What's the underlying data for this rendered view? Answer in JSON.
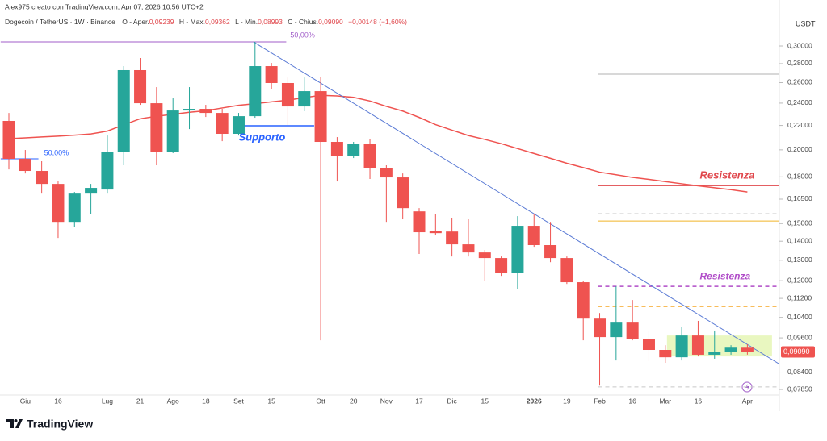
{
  "header": {
    "credit": "Alex975 creato con TradingView.com, Apr 07, 2026 10:56 UTC+2",
    "symbol": "Dogecoin / TetherUS · 1W · Binance",
    "open_label": "O - Aper.",
    "open_value": "0,09239",
    "high_label": "H - Max.",
    "high_value": "0,09362",
    "low_label": "L - Min.",
    "low_value": "0,08993",
    "close_label": "C - Chius.",
    "close_value": "0,09090",
    "change": "−0,00148 (−1,60%)"
  },
  "brand": "TradingView",
  "chart_data": {
    "type": "candlestick",
    "y_axis_label": "USDT",
    "log_scale": true,
    "grid": false,
    "up_color": "#26a69a",
    "down_color": "#ef5350",
    "categories": [
      null,
      "Giu",
      null,
      "16",
      null,
      null,
      "Lug",
      null,
      "21",
      null,
      "Ago",
      null,
      "18",
      null,
      "Set",
      null,
      "15",
      null,
      null,
      "Ott",
      null,
      "20",
      null,
      "Nov",
      null,
      "17",
      null,
      "Dic",
      null,
      "15",
      null,
      null,
      "2026",
      null,
      "19",
      null,
      "Feb",
      null,
      "16",
      null,
      "Mar",
      null,
      "16",
      null,
      null,
      "Apr"
    ],
    "open": [
      0.2239,
      0.1931,
      0.1842,
      0.1751,
      0.151,
      0.1686,
      0.1713,
      0.1986,
      0.273,
      0.2399,
      0.1986,
      0.2332,
      0.2347,
      0.231,
      0.2129,
      0.2281,
      0.2773,
      0.2596,
      0.2369,
      0.2515,
      0.2063,
      0.1955,
      0.205,
      0.1865,
      0.1796,
      0.1573,
      0.1459,
      0.1454,
      0.1383,
      0.134,
      0.1311,
      0.1239,
      0.1487,
      0.1379,
      0.1311,
      0.1193,
      0.1035,
      0.0963,
      0.1019,
      0.0957,
      0.0916,
      0.089,
      0.0969,
      0.0899,
      0.0909,
      0.09239
    ],
    "high": [
      0.231,
      0.1999,
      0.1913,
      0.1768,
      0.1697,
      0.1751,
      0.2115,
      0.2773,
      0.2862,
      0.2555,
      0.2445,
      0.2555,
      0.2384,
      0.2347,
      0.231,
      0.3048,
      0.2808,
      0.2653,
      0.2653,
      0.2662,
      0.2102,
      0.2063,
      0.2089,
      0.1883,
      0.1824,
      0.1593,
      0.1559,
      0.1534,
      0.1525,
      0.1353,
      0.1319,
      0.1544,
      0.1559,
      0.151,
      0.1319,
      0.12,
      0.1058,
      0.1174,
      0.1113,
      0.0988,
      0.0933,
      0.1003,
      0.1026,
      0.0988,
      0.0933,
      0.09362
    ],
    "low": [
      0.1853,
      0.1824,
      0.1686,
      0.1418,
      0.1478,
      0.1559,
      0.1686,
      0.1883,
      0.2384,
      0.1883,
      0.1974,
      0.2169,
      0.2274,
      0.2069,
      0.2115,
      0.2267,
      0.2539,
      0.2204,
      0.2325,
      0.0951,
      0.1768,
      0.1937,
      0.1785,
      0.151,
      0.1525,
      0.1332,
      0.1432,
      0.1319,
      0.1319,
      0.12,
      0.1223,
      0.1163,
      0.137,
      0.129,
      0.1185,
      0.0951,
      0.0797,
      0.0879,
      0.0951,
      0.0876,
      0.0871,
      0.0879,
      0.0893,
      0.0885,
      0.0899,
      0.08993
    ],
    "close": [
      0.1931,
      0.1842,
      0.1751,
      0.151,
      0.1686,
      0.1724,
      0.1986,
      0.273,
      0.2399,
      0.1986,
      0.2332,
      0.2347,
      0.231,
      0.2129,
      0.2281,
      0.2773,
      0.2596,
      0.2369,
      0.2515,
      0.2063,
      0.1955,
      0.205,
      0.1865,
      0.1796,
      0.1593,
      0.145,
      0.1445,
      0.1383,
      0.134,
      0.1311,
      0.1239,
      0.1487,
      0.1379,
      0.1311,
      0.1193,
      0.1035,
      0.0963,
      0.1019,
      0.0957,
      0.0916,
      0.089,
      0.0969,
      0.0899,
      0.0909,
      0.0924,
      0.0909
    ],
    "moving_average": {
      "color": "#ef5350",
      "values": [
        0.2089,
        0.2096,
        0.2103,
        0.211,
        0.2118,
        0.2128,
        0.2152,
        0.2205,
        0.2258,
        0.228,
        0.2298,
        0.2316,
        0.233,
        0.2355,
        0.238,
        0.2395,
        0.2412,
        0.2428,
        0.2452,
        0.2474,
        0.2468,
        0.2455,
        0.242,
        0.237,
        0.2327,
        0.227,
        0.2207,
        0.216,
        0.2115,
        0.2083,
        0.2049,
        0.201,
        0.1972,
        0.1935,
        0.1898,
        0.1866,
        0.1833,
        0.1815,
        0.1796,
        0.1782,
        0.1767,
        0.1752,
        0.1738,
        0.1725,
        0.1712,
        0.1697
      ]
    },
    "ylim": [
      0.0768,
      0.3435
    ],
    "yticks": [
      {
        "value": 0.3,
        "label": "0,30000"
      },
      {
        "value": 0.28,
        "label": "0,28000"
      },
      {
        "value": 0.26,
        "label": "0,26000"
      },
      {
        "value": 0.24,
        "label": "0,24000"
      },
      {
        "value": 0.22,
        "label": "0,22000"
      },
      {
        "value": 0.2,
        "label": "0,20000"
      },
      {
        "value": 0.18,
        "label": "0,18000"
      },
      {
        "value": 0.165,
        "label": "0,16500"
      },
      {
        "value": 0.15,
        "label": "0,15000"
      },
      {
        "value": 0.14,
        "label": "0,14000"
      },
      {
        "value": 0.13,
        "label": "0,13000"
      },
      {
        "value": 0.12,
        "label": "0,12000"
      },
      {
        "value": 0.112,
        "label": "0,11200"
      },
      {
        "value": 0.104,
        "label": "0,10400"
      },
      {
        "value": 0.096,
        "label": "0,09600"
      },
      {
        "value": 0.084,
        "label": "0,08400"
      },
      {
        "value": 0.0785,
        "label": "0,07850"
      }
    ],
    "last_price": 0.0909,
    "levels": [
      {
        "label": "Supporto",
        "value": 0.2197,
        "x": [
          14.2,
          18.6
        ],
        "color": "#2962ff",
        "dashed": false
      },
      {
        "label": "Resistenza",
        "value": 0.174,
        "x": [
          35.9,
          47
        ],
        "color": "#e0474c",
        "dashed": false
      },
      {
        "label": "Resistenza",
        "value": 0.1174,
        "x": [
          35.9,
          47
        ],
        "color": "#b04cc8",
        "dashed": true
      },
      {
        "label": "50,00%",
        "value": 0.3048,
        "x": [
          -0.5,
          16.9
        ],
        "color": "#a05cc8",
        "dashed": false
      },
      {
        "label": "50,00%",
        "value": 0.1931,
        "x": [
          -0.5,
          1.8
        ],
        "color": "#2962ff",
        "dashed": false
      },
      {
        "value": 0.2687,
        "x": [
          35.9,
          47
        ],
        "color": "#b0b0b0",
        "dashed": false
      },
      {
        "value": 0.1559,
        "x": [
          35.9,
          47
        ],
        "color": "#c8c8c8",
        "dashed": true
      },
      {
        "value": 0.1515,
        "x": [
          35.9,
          47
        ],
        "color": "#f0b429",
        "dashed": false
      },
      {
        "value": 0.1085,
        "x": [
          35.9,
          47
        ],
        "color": "#f5a623",
        "dashed": true
      },
      {
        "value": 0.0793,
        "x": [
          35.9,
          47
        ],
        "color": "#c8c8c8",
        "dashed": true
      }
    ],
    "trend_line": {
      "x": [
        14.9,
        47
      ],
      "values": [
        0.3048,
        0.0865
      ],
      "color": "#5b7bd5"
    },
    "range_box": {
      "x": [
        40.1,
        46.5
      ],
      "values": [
        0.0969,
        0.0893
      ],
      "color": "#e4f5b0"
    }
  }
}
